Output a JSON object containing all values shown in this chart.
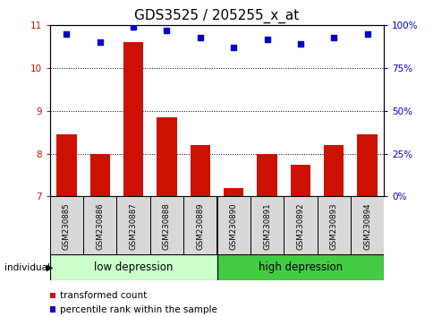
{
  "title": "GDS3525 / 205255_x_at",
  "samples": [
    "GSM230885",
    "GSM230886",
    "GSM230887",
    "GSM230888",
    "GSM230889",
    "GSM230890",
    "GSM230891",
    "GSM230892",
    "GSM230893",
    "GSM230894"
  ],
  "bar_values": [
    8.45,
    8.0,
    10.6,
    8.85,
    8.2,
    7.2,
    8.0,
    7.75,
    8.2,
    8.45
  ],
  "dot_values": [
    95,
    90,
    99,
    97,
    93,
    87,
    92,
    89,
    93,
    95
  ],
  "bar_color": "#cc1100",
  "dot_color": "#0000cc",
  "ylim_left": [
    7,
    11
  ],
  "yticks_left": [
    7,
    8,
    9,
    10,
    11
  ],
  "ylim_right": [
    0,
    100
  ],
  "yticks_right": [
    0,
    25,
    50,
    75,
    100
  ],
  "ylabel_right_labels": [
    "0%",
    "25%",
    "50%",
    "75%",
    "100%"
  ],
  "group1_label": "low depression",
  "group2_label": "high depression",
  "group1_color": "#ccffcc",
  "group2_color": "#44cc44",
  "group1_samples": 5,
  "group2_samples": 5,
  "individual_label": "individual",
  "legend_bar_label": "transformed count",
  "legend_dot_label": "percentile rank within the sample",
  "title_fontsize": 11,
  "tick_fontsize": 7.5,
  "label_fontsize": 8.5,
  "bar_bottom": 7,
  "bg_color": "#ffffff"
}
